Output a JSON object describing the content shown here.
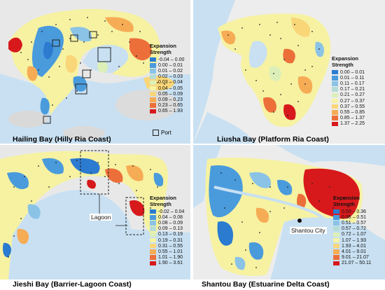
{
  "panels": [
    {
      "id": "hailing",
      "caption": "Hailing Bay  (Hilly Ria Coast)",
      "legend_title": "Expansion\nStrength",
      "legend": [
        {
          "label": "-0.04 – 0.00",
          "color": "#2b7bd1"
        },
        {
          "label": "0.00 – 0.01",
          "color": "#4a9bdc"
        },
        {
          "label": "0.01 – 0.02",
          "color": "#8bc3e6"
        },
        {
          "label": "0.02 – 0.03",
          "color": "#b5dcd6"
        },
        {
          "label": "0.03 – 0.04",
          "color": "#dcefb8"
        },
        {
          "label": "0.04 – 0.05",
          "color": "#f6f2a2"
        },
        {
          "label": "0.05 – 0.09",
          "color": "#f9d678"
        },
        {
          "label": "0.09 – 0.23",
          "color": "#f6ac55"
        },
        {
          "label": "0.23 – 0.65",
          "color": "#ec6f3a"
        },
        {
          "label": "0.65 – 1.93",
          "color": "#d7191c"
        }
      ],
      "port_label": "Port"
    },
    {
      "id": "liusha",
      "caption": "Liusha Bay  (Platform Ria Coast)",
      "legend_title": "Expansion\nStrength",
      "legend": [
        {
          "label": "0.00 – 0.01",
          "color": "#2b7bd1"
        },
        {
          "label": "0.01 – 0.11",
          "color": "#4a9bdc"
        },
        {
          "label": "0.11 – 0.17",
          "color": "#8bc3e6"
        },
        {
          "label": "0.17 – 0.21",
          "color": "#b5dcd6"
        },
        {
          "label": "0.21 – 0.27",
          "color": "#dcefb8"
        },
        {
          "label": "0.27 – 0.37",
          "color": "#f6f2a2"
        },
        {
          "label": "0.37 – 0.55",
          "color": "#f9d678"
        },
        {
          "label": "0.55 – 0.85",
          "color": "#f6ac55"
        },
        {
          "label": "0.85 – 1.37",
          "color": "#ec6f3a"
        },
        {
          "label": "1.37 – 2.25",
          "color": "#d7191c"
        }
      ]
    },
    {
      "id": "jieshi",
      "caption": "Jieshi Bay  (Barrier-Lagoon Coast)",
      "legend_title": "Expansion\nStrength",
      "legend": [
        {
          "label": "-0.02 – 0.04",
          "color": "#2b7bd1"
        },
        {
          "label": "0.04 – 0.08",
          "color": "#4a9bdc"
        },
        {
          "label": "0.08 – 0.09",
          "color": "#8bc3e6"
        },
        {
          "label": "0.09 – 0.13",
          "color": "#b5dcd6"
        },
        {
          "label": "0.13 – 0.19",
          "color": "#dcefb8"
        },
        {
          "label": "0.19 – 0.31",
          "color": "#f6f2a2"
        },
        {
          "label": "0.31 – 0.55",
          "color": "#f9d678"
        },
        {
          "label": "0.55 – 1.01",
          "color": "#f6ac55"
        },
        {
          "label": "1.01 – 1.90",
          "color": "#ec6f3a"
        },
        {
          "label": "1.90 – 3.61",
          "color": "#d7191c"
        }
      ],
      "map_label": "Lagoon"
    },
    {
      "id": "shantou",
      "caption": "Shantou Bay  (Estuarine Delta Coast)",
      "legend_title": "Expansion\nStrength",
      "legend": [
        {
          "label": "0.00 – 0.36",
          "color": "#2b7bd1"
        },
        {
          "label": "0.36 – 0.51",
          "color": "#4a9bdc"
        },
        {
          "label": "0.51 – 0.57",
          "color": "#8bc3e6"
        },
        {
          "label": "0.57 – 0.72",
          "color": "#b5dcd6"
        },
        {
          "label": "0.72 – 1.07",
          "color": "#dcefb8"
        },
        {
          "label": "1.07 – 1.93",
          "color": "#f6f2a2"
        },
        {
          "label": "1.93 – 4.01",
          "color": "#f9d678"
        },
        {
          "label": "4.01 – 9.01",
          "color": "#f6ac55"
        },
        {
          "label": "9.01 – 21.07",
          "color": "#ec6f3a"
        },
        {
          "label": "21.07 – 50.11",
          "color": "#d7191c"
        }
      ],
      "map_label": "Shantou City"
    }
  ],
  "colors": {
    "sea": "#c8e0f2",
    "land": "#ececec",
    "hill": "#d6d6d6",
    "dot": "#222222"
  }
}
